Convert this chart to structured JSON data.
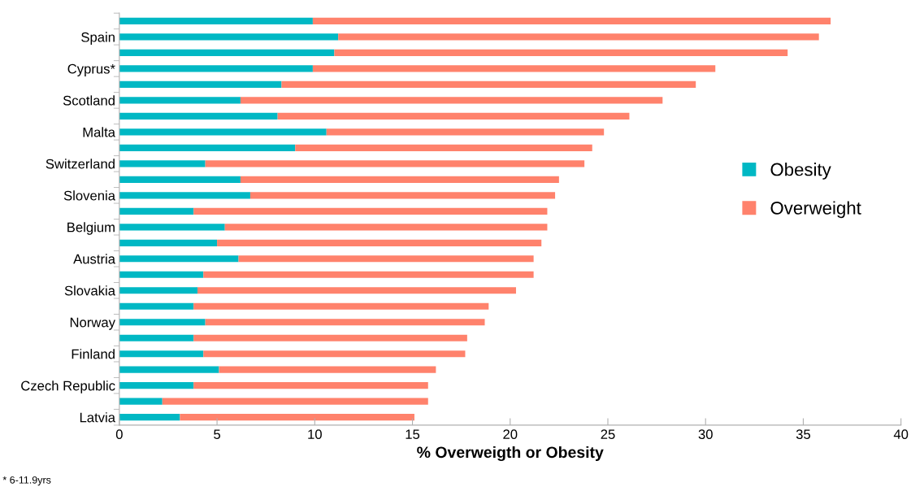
{
  "chart_data": {
    "type": "bar",
    "orientation": "horizontal",
    "stacked": true,
    "xlabel": "% Overweigth or Obesity",
    "categories": [
      null,
      "Spain",
      null,
      "Cyprus*",
      null,
      "Scotland",
      null,
      "Malta",
      null,
      "Switzerland",
      null,
      "Slovenia",
      null,
      "Belgium",
      null,
      "Austria",
      null,
      "Slovakia",
      null,
      "Norway",
      null,
      "Finland",
      null,
      "Czech Republic",
      null,
      "Latvia"
    ],
    "series": [
      {
        "name": "Obesity",
        "color": "#00b8c4",
        "values": [
          9.9,
          11.2,
          11.0,
          9.9,
          8.3,
          6.2,
          8.1,
          10.6,
          9.0,
          4.4,
          6.2,
          6.7,
          3.8,
          5.4,
          5.0,
          6.1,
          4.3,
          4.0,
          3.8,
          4.4,
          3.8,
          4.3,
          5.1,
          3.8,
          2.2,
          3.1
        ]
      },
      {
        "name": "Overweight",
        "color": "#ff826c",
        "values": [
          26.5,
          24.6,
          23.2,
          20.6,
          21.2,
          21.6,
          18.0,
          14.2,
          15.2,
          19.4,
          16.3,
          15.6,
          18.1,
          16.5,
          16.6,
          15.1,
          16.9,
          16.3,
          15.1,
          14.3,
          14.0,
          13.4,
          11.1,
          12.0,
          13.6,
          12.0
        ]
      }
    ],
    "xlim": [
      0,
      40
    ],
    "xticks": [
      0,
      5,
      10,
      15,
      20,
      25,
      30,
      35,
      40
    ],
    "grid": false,
    "legend": "right",
    "annotations": [
      "* 6-11.9yrs"
    ]
  }
}
